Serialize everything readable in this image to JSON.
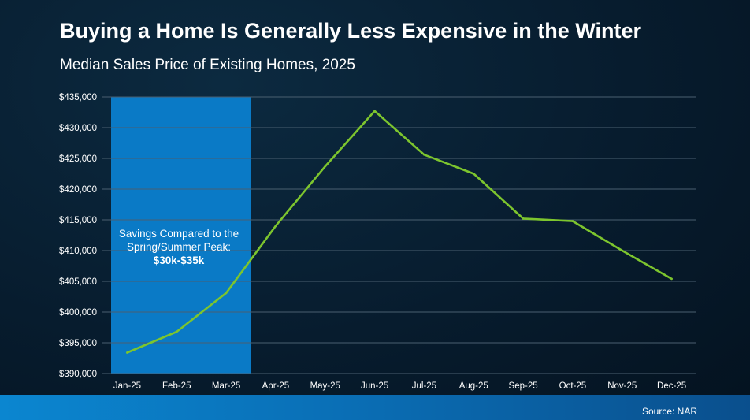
{
  "header": {
    "title": "Buying a Home Is Generally Less Expensive in the Winter",
    "subtitle": "Median Sales Price of Existing Homes, 2025"
  },
  "annotation": {
    "text": "Savings Compared to the Spring/Summer Peak: ",
    "highlight": "$30k-$35k"
  },
  "footer": {
    "source": "Source: NAR"
  },
  "colors": {
    "line": "#7dc52e",
    "highlight_band": "#0a7ac6",
    "grid": "#4a5f70",
    "text": "#ffffff"
  },
  "chart_data": {
    "type": "line",
    "title": "Buying a Home Is Generally Less Expensive in the Winter",
    "subtitle": "Median Sales Price of Existing Homes, 2025",
    "xlabel": "",
    "ylabel": "",
    "categories": [
      "Jan-25",
      "Feb-25",
      "Mar-25",
      "Apr-25",
      "May-25",
      "Jun-25",
      "Jul-25",
      "Aug-25",
      "Sep-25",
      "Oct-25",
      "Nov-25",
      "Dec-25"
    ],
    "series": [
      {
        "name": "Median Sales Price",
        "values": [
          393400,
          396800,
          403100,
          414000,
          423700,
          432700,
          425600,
          422500,
          415200,
          414800,
          410000,
          405400
        ]
      }
    ],
    "ylim": [
      390000,
      435000
    ],
    "yticks": [
      390000,
      395000,
      400000,
      405000,
      410000,
      415000,
      420000,
      425000,
      430000,
      435000
    ],
    "ytick_labels": [
      "$390,000",
      "$395,000",
      "$400,000",
      "$405,000",
      "$410,000",
      "$415,000",
      "$420,000",
      "$425,000",
      "$430,000",
      "$435,000"
    ],
    "highlight_range": [
      "Jan-25",
      "Mar-25"
    ],
    "grid": true,
    "legend": "none"
  }
}
